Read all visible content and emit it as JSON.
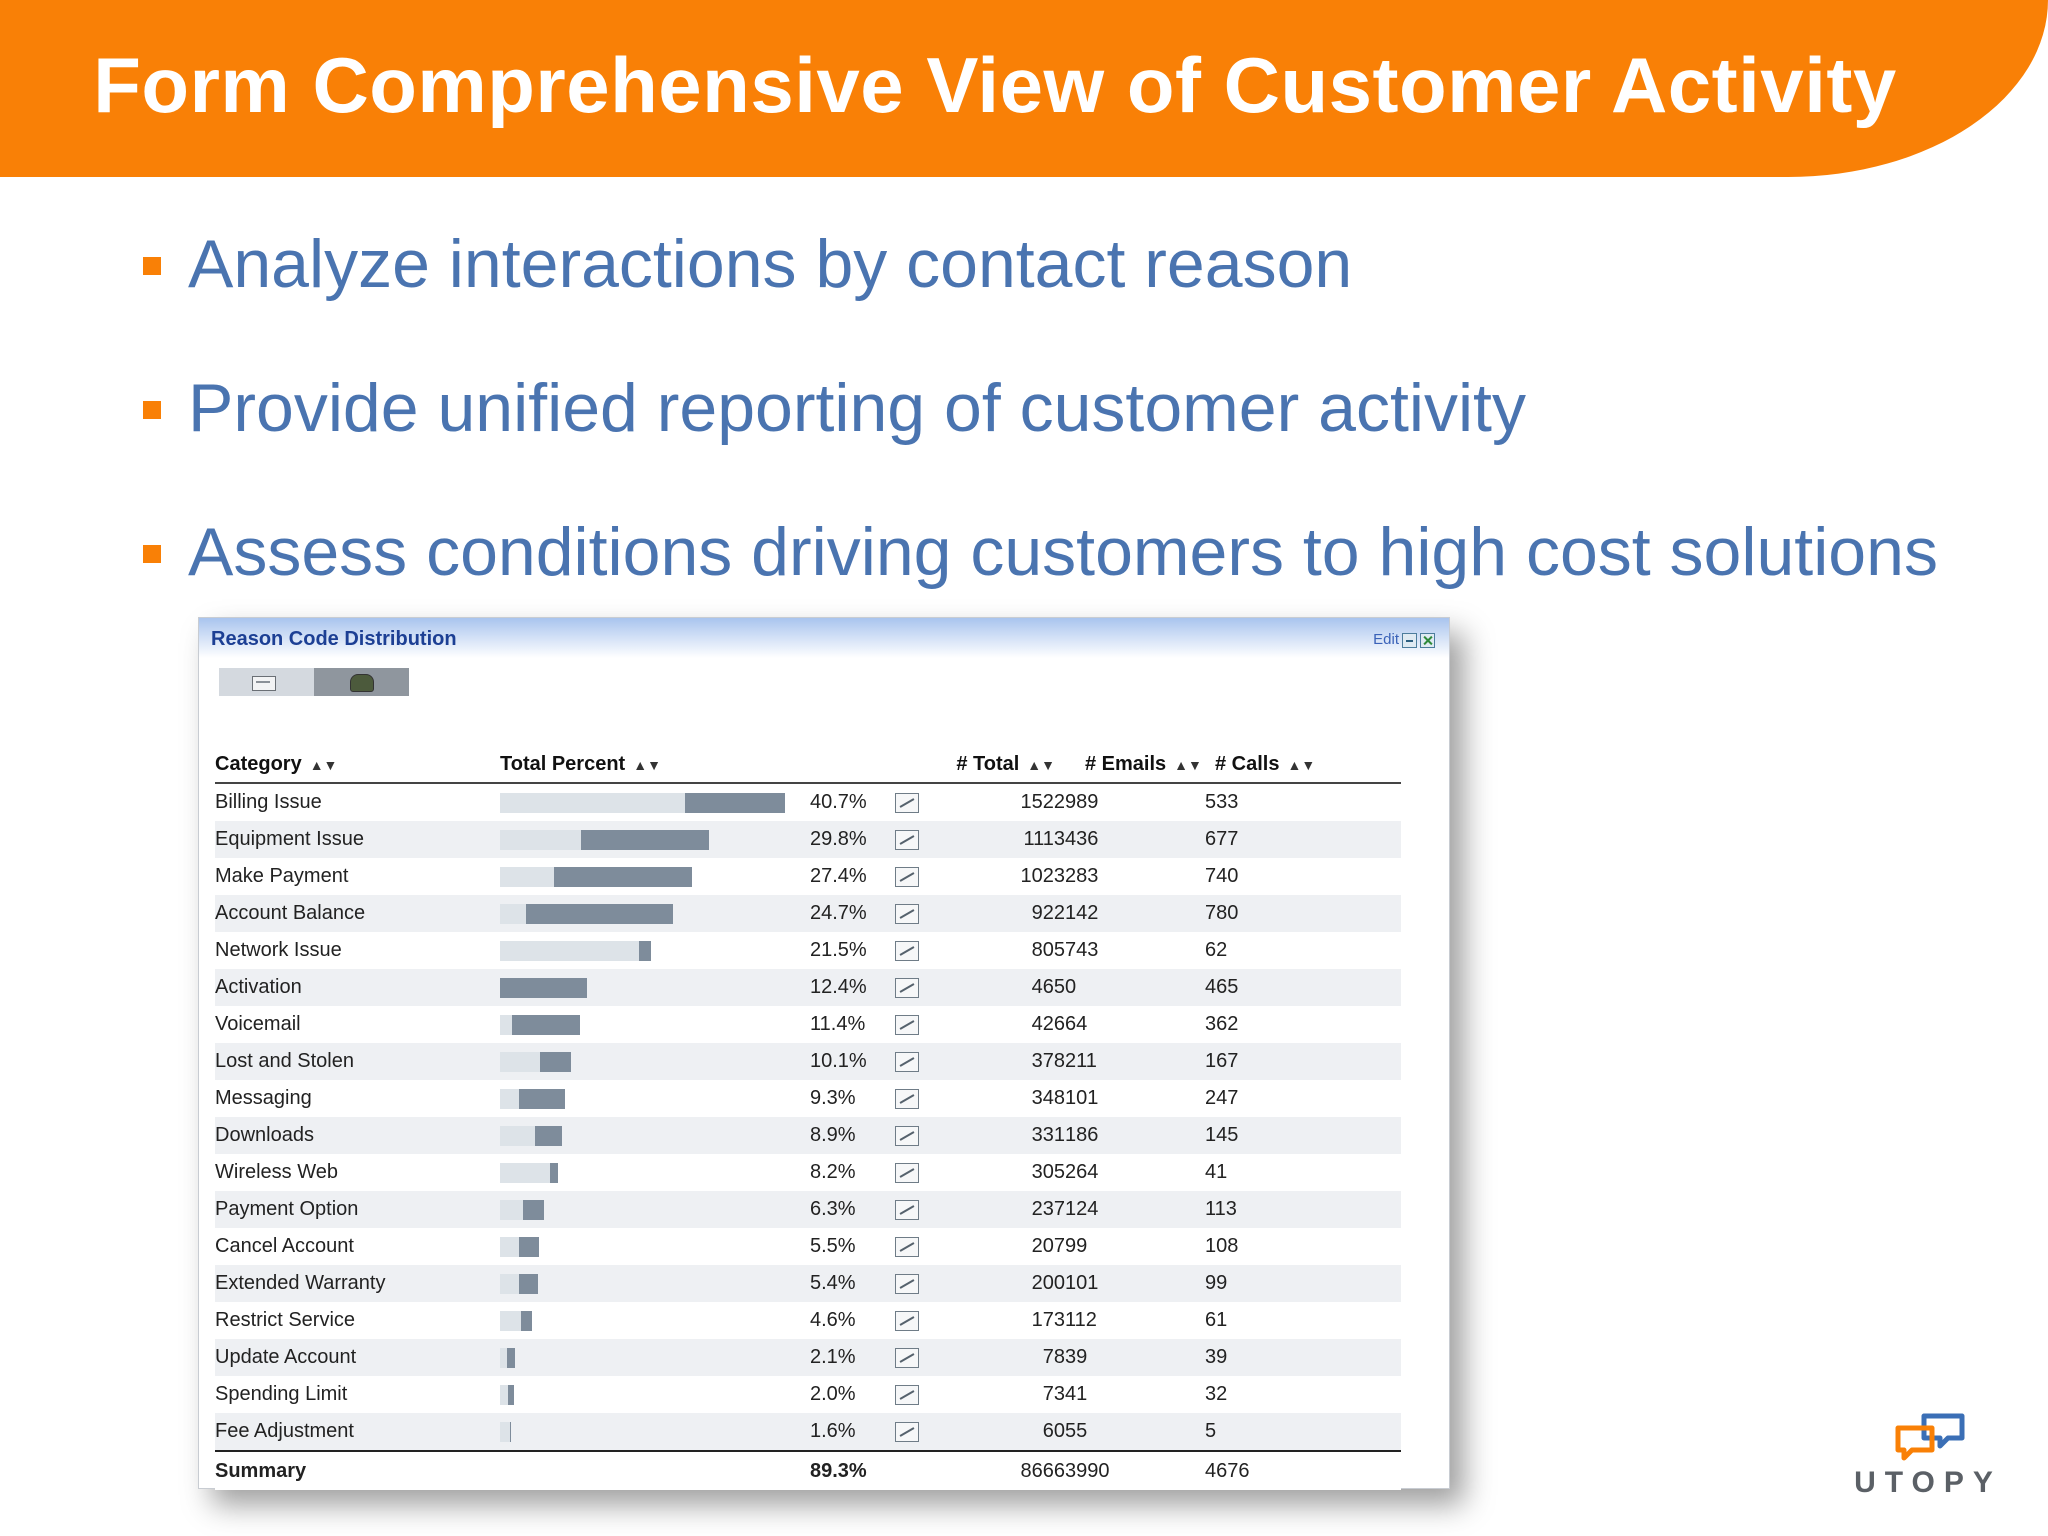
{
  "slide": {
    "title": "Form Comprehensive View of Customer Activity",
    "bullets": [
      "Analyze interactions by contact reason",
      "Provide unified reporting of customer activity",
      "Assess conditions driving customers to high cost solutions"
    ],
    "colors": {
      "banner": "#f98006",
      "bullet_text": "#4a74b0"
    }
  },
  "widget": {
    "title": "Reason Code Distribution",
    "edit_label": "Edit",
    "toggle_icons": [
      "email-icon",
      "phone-icon"
    ],
    "columns": {
      "category": "Category",
      "total_percent": "Total Percent",
      "total": "# Total",
      "emails": "# Emails",
      "calls": "# Calls"
    },
    "rows": [
      {
        "category": "Billing Issue",
        "pct": "40.7%",
        "pct_value": 40.7,
        "email_share": 0.65,
        "total": "1522",
        "emails": "989",
        "calls": "533"
      },
      {
        "category": "Equipment Issue",
        "pct": "29.8%",
        "pct_value": 29.8,
        "email_share": 0.39,
        "total": "1113",
        "emails": "436",
        "calls": "677"
      },
      {
        "category": "Make Payment",
        "pct": "27.4%",
        "pct_value": 27.4,
        "email_share": 0.28,
        "total": "1023",
        "emails": "283",
        "calls": "740"
      },
      {
        "category": "Account Balance",
        "pct": "24.7%",
        "pct_value": 24.7,
        "email_share": 0.15,
        "total": "922",
        "emails": "142",
        "calls": "780"
      },
      {
        "category": "Network Issue",
        "pct": "21.5%",
        "pct_value": 21.5,
        "email_share": 0.92,
        "total": "805",
        "emails": "743",
        "calls": "62"
      },
      {
        "category": "Activation",
        "pct": "12.4%",
        "pct_value": 12.4,
        "email_share": 0.0,
        "total": "465",
        "emails": "0",
        "calls": "465"
      },
      {
        "category": "Voicemail",
        "pct": "11.4%",
        "pct_value": 11.4,
        "email_share": 0.15,
        "total": "426",
        "emails": "64",
        "calls": "362"
      },
      {
        "category": "Lost and Stolen",
        "pct": "10.1%",
        "pct_value": 10.1,
        "email_share": 0.56,
        "total": "378",
        "emails": "211",
        "calls": "167"
      },
      {
        "category": "Messaging",
        "pct": "9.3%",
        "pct_value": 9.3,
        "email_share": 0.29,
        "total": "348",
        "emails": "101",
        "calls": "247"
      },
      {
        "category": "Downloads",
        "pct": "8.9%",
        "pct_value": 8.9,
        "email_share": 0.56,
        "total": "331",
        "emails": "186",
        "calls": "145"
      },
      {
        "category": "Wireless Web",
        "pct": "8.2%",
        "pct_value": 8.2,
        "email_share": 0.87,
        "total": "305",
        "emails": "264",
        "calls": "41"
      },
      {
        "category": "Payment Option",
        "pct": "6.3%",
        "pct_value": 6.3,
        "email_share": 0.52,
        "total": "237",
        "emails": "124",
        "calls": "113"
      },
      {
        "category": "Cancel Account",
        "pct": "5.5%",
        "pct_value": 5.5,
        "email_share": 0.48,
        "total": "207",
        "emails": "99",
        "calls": "108"
      },
      {
        "category": "Extended Warranty",
        "pct": "5.4%",
        "pct_value": 5.4,
        "email_share": 0.5,
        "total": "200",
        "emails": "101",
        "calls": "99"
      },
      {
        "category": "Restrict Service",
        "pct": "4.6%",
        "pct_value": 4.6,
        "email_share": 0.65,
        "total": "173",
        "emails": "112",
        "calls": "61"
      },
      {
        "category": "Update Account",
        "pct": "2.1%",
        "pct_value": 2.1,
        "email_share": 0.5,
        "total": "78",
        "emails": "39",
        "calls": "39"
      },
      {
        "category": "Spending Limit",
        "pct": "2.0%",
        "pct_value": 2.0,
        "email_share": 0.56,
        "total": "73",
        "emails": "41",
        "calls": "32"
      },
      {
        "category": "Fee Adjustment",
        "pct": "1.6%",
        "pct_value": 1.6,
        "email_share": 0.92,
        "total": "60",
        "emails": "55",
        "calls": "5"
      }
    ],
    "summary": {
      "label": "Summary",
      "pct": "89.3%",
      "total": "8666",
      "emails": "3990",
      "calls": "4676"
    }
  },
  "logo": {
    "text": "UTOPY",
    "icon": "chat-bubbles-icon"
  }
}
